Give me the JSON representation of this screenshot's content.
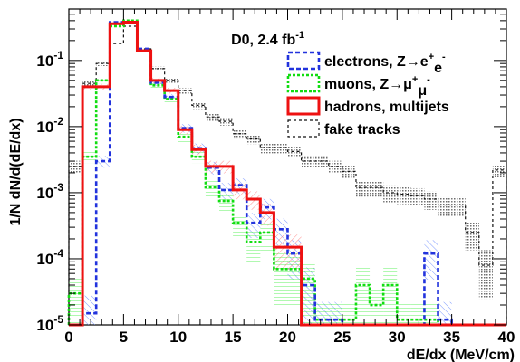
{
  "chart_data": {
    "type": "line",
    "style": "step-histogram",
    "annotation": "D0, 2.4 fb",
    "annotation_sup": "-1",
    "xlabel": "dE/dx (MeV/cm)",
    "ylabel": "1/N dN/d(dE/dx)",
    "xlim": [
      0,
      40
    ],
    "ylim": [
      1e-05,
      0.6
    ],
    "yscale": "log",
    "xticks": [
      0,
      5,
      10,
      15,
      20,
      25,
      30,
      35,
      40
    ],
    "yticks": [
      {
        "value": 1e-05,
        "base": "10",
        "exp": "-5"
      },
      {
        "value": 0.0001,
        "base": "10",
        "exp": "-4"
      },
      {
        "value": 0.001,
        "base": "10",
        "exp": "-3"
      },
      {
        "value": 0.01,
        "base": "10",
        "exp": "-2"
      },
      {
        "value": 0.1,
        "base": "10",
        "exp": "-1"
      }
    ],
    "legend_position": "top-right",
    "bin_width": 1.25,
    "series": [
      {
        "name": "electrons, Z→e⁺e⁻",
        "legend": {
          "base": "electrons, Z→e",
          "sup1": "+",
          "mid": "e",
          "sup2": "-"
        },
        "color": "#2233dd",
        "dash": "5,3",
        "band": "#5577ff",
        "values": [
          1e-05,
          1.5e-05,
          0.003,
          0.38,
          0.38,
          0.15,
          0.046,
          0.028,
          0.0095,
          0.0047,
          0.0024,
          0.0011,
          0.0013,
          0.00035,
          0.0006,
          0.00028,
          0.00012,
          4e-05,
          1.2e-05,
          1.2e-05,
          1e-05,
          1e-05,
          1e-05,
          1e-05,
          1e-05,
          1e-05,
          0.00012,
          1.2e-05,
          1e-05,
          1e-05,
          1e-05,
          1e-05
        ]
      },
      {
        "name": "muons, Z→μ⁺μ⁻",
        "legend": {
          "base": "muons, Z→μ",
          "sup1": "+",
          "mid": "μ",
          "sup2": "-"
        },
        "color": "#11dd11",
        "dash": "3,2",
        "band": "#33ee33",
        "values": [
          3e-05,
          0.0035,
          0.05,
          0.33,
          0.4,
          0.14,
          0.042,
          0.026,
          0.007,
          0.0035,
          0.0012,
          0.00075,
          0.00035,
          0.00018,
          0.00025,
          7e-05,
          7e-05,
          5e-05,
          1.2e-05,
          1.2e-05,
          1.2e-05,
          4e-05,
          2e-05,
          4e-05,
          1.2e-05,
          1.2e-05,
          1.2e-05,
          1e-05,
          1e-05,
          1e-05,
          1e-05,
          1e-05
        ]
      },
      {
        "name": "hadrons, multijets",
        "legend": {
          "base": "hadrons, multijets",
          "sup1": "",
          "mid": "",
          "sup2": ""
        },
        "color": "#ee1111",
        "dash": "",
        "band": "#ff7777",
        "values": [
          1e-05,
          0.04,
          0.04,
          0.36,
          0.38,
          0.14,
          0.05,
          0.035,
          0.009,
          0.0045,
          0.0025,
          0.0025,
          0.0011,
          0.0008,
          0.0005,
          0.00015,
          0.00015,
          1e-05,
          1e-05,
          1e-05,
          1e-05,
          1e-05,
          1e-05,
          1e-05,
          1e-05,
          1e-05,
          1e-05,
          1e-05,
          1e-05,
          1e-05,
          1e-05,
          1e-05
        ]
      },
      {
        "name": "fake tracks",
        "legend": {
          "base": "fake tracks",
          "sup1": "",
          "mid": "",
          "sup2": ""
        },
        "color": "#111111",
        "dash": "3,3",
        "band": "#888888",
        "values": [
          0.0025,
          0.045,
          0.09,
          0.18,
          0.33,
          0.15,
          0.075,
          0.05,
          0.035,
          0.021,
          0.014,
          0.012,
          0.0078,
          0.0065,
          0.0048,
          0.0048,
          0.0042,
          0.003,
          0.003,
          0.0025,
          0.0021,
          0.0012,
          0.0012,
          0.001,
          0.00095,
          0.0009,
          0.0008,
          0.00065,
          0.00065,
          0.00025,
          8e-05,
          0.0022
        ]
      }
    ]
  }
}
